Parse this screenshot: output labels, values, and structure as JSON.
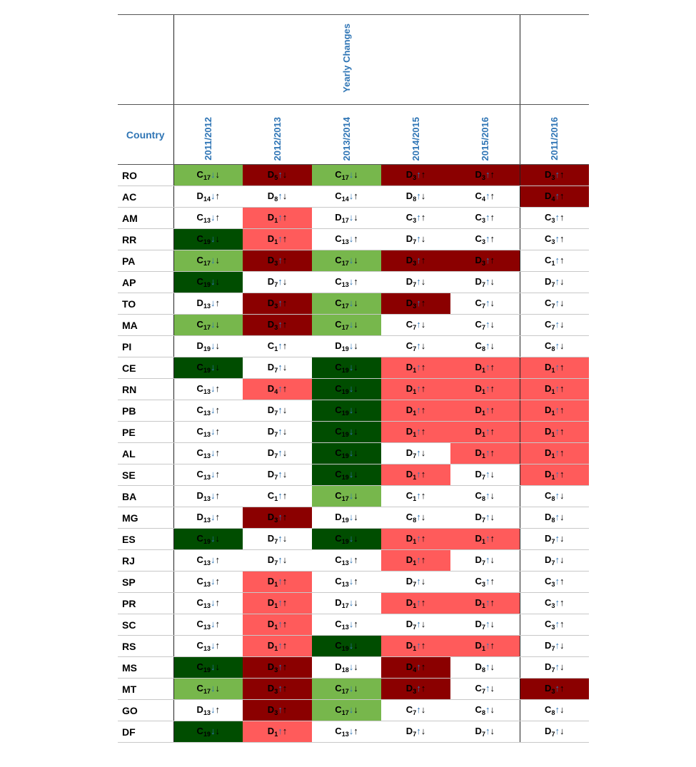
{
  "header": {
    "country_label": "Country",
    "group_label": "Yearly Changes",
    "periods": [
      "2011/2012",
      "2012/2013",
      "2013/2014",
      "2014/2015",
      "2015/2016"
    ],
    "overall_period": "2011/2016"
  },
  "colors": {
    "lightgreen": "#77b74c",
    "darkgreen": "#004d00",
    "lightred": "#ff5b5b",
    "darkred": "#8b0000",
    "header_blue": "#2f75b5"
  },
  "rows": [
    {
      "country": "RO",
      "cells": [
        {
          "l": "C",
          "n": "17",
          "a": "↓↓",
          "bg": "lightgreen"
        },
        {
          "l": "D",
          "n": "5",
          "a": "↑↓",
          "bg": "darkred"
        },
        {
          "l": "C",
          "n": "17",
          "a": "↓↓",
          "bg": "lightgreen"
        },
        {
          "l": "D",
          "n": "3",
          "a": "↑↑",
          "bg": "darkred"
        },
        {
          "l": "D",
          "n": "3",
          "a": "↑↑",
          "bg": "darkred"
        },
        {
          "l": "D",
          "n": "3",
          "a": "↑↑",
          "bg": "darkred"
        }
      ]
    },
    {
      "country": "AC",
      "cells": [
        {
          "l": "D",
          "n": "14",
          "a": "↓↑",
          "bg": ""
        },
        {
          "l": "D",
          "n": "8",
          "a": "↑↓",
          "bg": ""
        },
        {
          "l": "C",
          "n": "14",
          "a": "↓↑",
          "bg": ""
        },
        {
          "l": "D",
          "n": "8",
          "a": "↑↓",
          "bg": ""
        },
        {
          "l": "C",
          "n": "4",
          "a": "↑↑",
          "bg": ""
        },
        {
          "l": "D",
          "n": "4",
          "a": "↑↑",
          "bg": "darkred"
        }
      ]
    },
    {
      "country": "AM",
      "cells": [
        {
          "l": "C",
          "n": "13",
          "a": "↓↑",
          "bg": ""
        },
        {
          "l": "D",
          "n": "1",
          "a": "↑↑",
          "bg": "lightred"
        },
        {
          "l": "D",
          "n": "17",
          "a": "↓↓",
          "bg": ""
        },
        {
          "l": "C",
          "n": "3",
          "a": "↑↑",
          "bg": ""
        },
        {
          "l": "C",
          "n": "3",
          "a": "↑↑",
          "bg": ""
        },
        {
          "l": "C",
          "n": "3",
          "a": "↑↑",
          "bg": ""
        }
      ]
    },
    {
      "country": "RR",
      "cells": [
        {
          "l": "C",
          "n": "19",
          "a": "↓↓",
          "bg": "darkgreen"
        },
        {
          "l": "D",
          "n": "1",
          "a": "↑↑",
          "bg": "lightred"
        },
        {
          "l": "C",
          "n": "13",
          "a": "↓↑",
          "bg": ""
        },
        {
          "l": "D",
          "n": "7",
          "a": "↑↓",
          "bg": ""
        },
        {
          "l": "C",
          "n": "3",
          "a": "↑↑",
          "bg": ""
        },
        {
          "l": "C",
          "n": "3",
          "a": "↑↑",
          "bg": ""
        }
      ]
    },
    {
      "country": "PA",
      "cells": [
        {
          "l": "C",
          "n": "17",
          "a": "↓↓",
          "bg": "lightgreen"
        },
        {
          "l": "D",
          "n": "3",
          "a": "↑↑",
          "bg": "darkred"
        },
        {
          "l": "C",
          "n": "17",
          "a": "↓↓",
          "bg": "lightgreen"
        },
        {
          "l": "D",
          "n": "3",
          "a": "↑↑",
          "bg": "darkred"
        },
        {
          "l": "D",
          "n": "3",
          "a": "↑↑",
          "bg": "darkred"
        },
        {
          "l": "C",
          "n": "1",
          "a": "↑↑",
          "bg": ""
        }
      ]
    },
    {
      "country": "AP",
      "cells": [
        {
          "l": "C",
          "n": "19",
          "a": "↓↓",
          "bg": "darkgreen"
        },
        {
          "l": "D",
          "n": "7",
          "a": "↑↓",
          "bg": ""
        },
        {
          "l": "C",
          "n": "13",
          "a": "↓↑",
          "bg": ""
        },
        {
          "l": "D",
          "n": "7",
          "a": "↑↓",
          "bg": ""
        },
        {
          "l": "D",
          "n": "7",
          "a": "↑↓",
          "bg": ""
        },
        {
          "l": "D",
          "n": "7",
          "a": "↑↓",
          "bg": ""
        }
      ]
    },
    {
      "country": "TO",
      "cells": [
        {
          "l": "D",
          "n": "13",
          "a": "↓↑",
          "bg": ""
        },
        {
          "l": "D",
          "n": "3",
          "a": "↑↑",
          "bg": "darkred"
        },
        {
          "l": "C",
          "n": "17",
          "a": "↓↓",
          "bg": "lightgreen"
        },
        {
          "l": "D",
          "n": "3",
          "a": "↑↑",
          "bg": "darkred"
        },
        {
          "l": "C",
          "n": "7",
          "a": "↑↓",
          "bg": ""
        },
        {
          "l": "C",
          "n": "7",
          "a": "↑↓",
          "bg": ""
        }
      ]
    },
    {
      "country": "MA",
      "cells": [
        {
          "l": "C",
          "n": "17",
          "a": "↓↓",
          "bg": "lightgreen"
        },
        {
          "l": "D",
          "n": "3",
          "a": "↑↑",
          "bg": "darkred"
        },
        {
          "l": "C",
          "n": "17",
          "a": "↓↓",
          "bg": "lightgreen"
        },
        {
          "l": "C",
          "n": "7",
          "a": "↑↓",
          "bg": ""
        },
        {
          "l": "C",
          "n": "7",
          "a": "↑↓",
          "bg": ""
        },
        {
          "l": "C",
          "n": "7",
          "a": "↑↓",
          "bg": ""
        }
      ]
    },
    {
      "country": "PI",
      "cells": [
        {
          "l": "D",
          "n": "19",
          "a": "↓↓",
          "bg": ""
        },
        {
          "l": "C",
          "n": "1",
          "a": "↑↑",
          "bg": ""
        },
        {
          "l": "D",
          "n": "19",
          "a": "↓↓",
          "bg": ""
        },
        {
          "l": "C",
          "n": "7",
          "a": "↑↓",
          "bg": ""
        },
        {
          "l": "C",
          "n": "8",
          "a": "↑↓",
          "bg": ""
        },
        {
          "l": "C",
          "n": "8",
          "a": "↑↓",
          "bg": ""
        }
      ]
    },
    {
      "country": "CE",
      "cells": [
        {
          "l": "C",
          "n": "19",
          "a": "↓↓",
          "bg": "darkgreen"
        },
        {
          "l": "D",
          "n": "7",
          "a": "↑↓",
          "bg": ""
        },
        {
          "l": "C",
          "n": "19",
          "a": "↓↓",
          "bg": "darkgreen"
        },
        {
          "l": "D",
          "n": "1",
          "a": "↑↑",
          "bg": "lightred"
        },
        {
          "l": "D",
          "n": "1",
          "a": "↑↑",
          "bg": "lightred"
        },
        {
          "l": "D",
          "n": "1",
          "a": "↑↑",
          "bg": "lightred"
        }
      ]
    },
    {
      "country": "RN",
      "cells": [
        {
          "l": "C",
          "n": "13",
          "a": "↓↑",
          "bg": ""
        },
        {
          "l": "D",
          "n": "4",
          "a": "↑↑",
          "bg": "lightred"
        },
        {
          "l": "C",
          "n": "19",
          "a": "↓↓",
          "bg": "darkgreen"
        },
        {
          "l": "D",
          "n": "1",
          "a": "↑↑",
          "bg": "lightred"
        },
        {
          "l": "D",
          "n": "1",
          "a": "↑↑",
          "bg": "lightred"
        },
        {
          "l": "D",
          "n": "1",
          "a": "↑↑",
          "bg": "lightred"
        }
      ]
    },
    {
      "country": "PB",
      "cells": [
        {
          "l": "C",
          "n": "13",
          "a": "↓↑",
          "bg": ""
        },
        {
          "l": "D",
          "n": "7",
          "a": "↑↓",
          "bg": ""
        },
        {
          "l": "C",
          "n": "19",
          "a": "↓↓",
          "bg": "darkgreen"
        },
        {
          "l": "D",
          "n": "1",
          "a": "↑↑",
          "bg": "lightred"
        },
        {
          "l": "D",
          "n": "1",
          "a": "↑↑",
          "bg": "lightred"
        },
        {
          "l": "D",
          "n": "1",
          "a": "↑↑",
          "bg": "lightred"
        }
      ]
    },
    {
      "country": "PE",
      "cells": [
        {
          "l": "C",
          "n": "13",
          "a": "↓↑",
          "bg": ""
        },
        {
          "l": "D",
          "n": "7",
          "a": "↑↓",
          "bg": ""
        },
        {
          "l": "C",
          "n": "19",
          "a": "↓↓",
          "bg": "darkgreen"
        },
        {
          "l": "D",
          "n": "1",
          "a": "↑↑",
          "bg": "lightred"
        },
        {
          "l": "D",
          "n": "1",
          "a": "↑↑",
          "bg": "lightred"
        },
        {
          "l": "D",
          "n": "1",
          "a": "↑↑",
          "bg": "lightred"
        }
      ]
    },
    {
      "country": "AL",
      "cells": [
        {
          "l": "C",
          "n": "13",
          "a": "↓↑",
          "bg": ""
        },
        {
          "l": "D",
          "n": "7",
          "a": "↑↓",
          "bg": ""
        },
        {
          "l": "C",
          "n": "19",
          "a": "↓↓",
          "bg": "darkgreen"
        },
        {
          "l": "D",
          "n": "7",
          "a": "↑↓",
          "bg": ""
        },
        {
          "l": "D",
          "n": "1",
          "a": "↑↑",
          "bg": "lightred"
        },
        {
          "l": "D",
          "n": "1",
          "a": "↑↑",
          "bg": "lightred"
        }
      ]
    },
    {
      "country": "SE",
      "cells": [
        {
          "l": "C",
          "n": "13",
          "a": "↓↑",
          "bg": ""
        },
        {
          "l": "D",
          "n": "7",
          "a": "↑↓",
          "bg": ""
        },
        {
          "l": "C",
          "n": "19",
          "a": "↓↓",
          "bg": "darkgreen"
        },
        {
          "l": "D",
          "n": "1",
          "a": "↑↑",
          "bg": "lightred"
        },
        {
          "l": "D",
          "n": "7",
          "a": "↑↓",
          "bg": ""
        },
        {
          "l": "D",
          "n": "1",
          "a": "↑↑",
          "bg": "lightred"
        }
      ]
    },
    {
      "country": "BA",
      "cells": [
        {
          "l": "D",
          "n": "13",
          "a": "↓↑",
          "bg": ""
        },
        {
          "l": "C",
          "n": "1",
          "a": "↑↑",
          "bg": ""
        },
        {
          "l": "C",
          "n": "17",
          "a": "↓↓",
          "bg": "lightgreen"
        },
        {
          "l": "C",
          "n": "1",
          "a": "↑↑",
          "bg": ""
        },
        {
          "l": "C",
          "n": "8",
          "a": "↑↓",
          "bg": ""
        },
        {
          "l": "C",
          "n": "8",
          "a": "↑↓",
          "bg": ""
        }
      ]
    },
    {
      "country": "MG",
      "cells": [
        {
          "l": "D",
          "n": "13",
          "a": "↓↑",
          "bg": ""
        },
        {
          "l": "D",
          "n": "3",
          "a": "↑↑",
          "bg": "darkred"
        },
        {
          "l": "D",
          "n": "19",
          "a": "↓↓",
          "bg": ""
        },
        {
          "l": "C",
          "n": "8",
          "a": "↑↓",
          "bg": ""
        },
        {
          "l": "D",
          "n": "7",
          "a": "↑↓",
          "bg": ""
        },
        {
          "l": "D",
          "n": "8",
          "a": "↑↓",
          "bg": ""
        }
      ]
    },
    {
      "country": "ES",
      "cells": [
        {
          "l": "C",
          "n": "19",
          "a": "↓↓",
          "bg": "darkgreen"
        },
        {
          "l": "D",
          "n": "7",
          "a": "↑↓",
          "bg": ""
        },
        {
          "l": "C",
          "n": "19",
          "a": "↓↓",
          "bg": "darkgreen"
        },
        {
          "l": "D",
          "n": "1",
          "a": "↑↑",
          "bg": "lightred"
        },
        {
          "l": "D",
          "n": "1",
          "a": "↑↑",
          "bg": "lightred"
        },
        {
          "l": "D",
          "n": "7",
          "a": "↑↓",
          "bg": ""
        }
      ]
    },
    {
      "country": "RJ",
      "cells": [
        {
          "l": "C",
          "n": "13",
          "a": "↓↑",
          "bg": ""
        },
        {
          "l": "D",
          "n": "7",
          "a": "↑↓",
          "bg": ""
        },
        {
          "l": "C",
          "n": "13",
          "a": "↓↑",
          "bg": ""
        },
        {
          "l": "D",
          "n": "1",
          "a": "↑↑",
          "bg": "lightred"
        },
        {
          "l": "D",
          "n": "7",
          "a": "↑↓",
          "bg": ""
        },
        {
          "l": "D",
          "n": "7",
          "a": "↑↓",
          "bg": ""
        }
      ]
    },
    {
      "country": "SP",
      "cells": [
        {
          "l": "C",
          "n": "13",
          "a": "↓↑",
          "bg": ""
        },
        {
          "l": "D",
          "n": "1",
          "a": "↑↑",
          "bg": "lightred"
        },
        {
          "l": "C",
          "n": "13",
          "a": "↓↑",
          "bg": ""
        },
        {
          "l": "D",
          "n": "7",
          "a": "↑↓",
          "bg": ""
        },
        {
          "l": "C",
          "n": "3",
          "a": "↑↑",
          "bg": ""
        },
        {
          "l": "C",
          "n": "3",
          "a": "↑↑",
          "bg": ""
        }
      ]
    },
    {
      "country": "PR",
      "cells": [
        {
          "l": "C",
          "n": "13",
          "a": "↓↑",
          "bg": ""
        },
        {
          "l": "D",
          "n": "1",
          "a": "↑↑",
          "bg": "lightred"
        },
        {
          "l": "D",
          "n": "17",
          "a": "↓↓",
          "bg": ""
        },
        {
          "l": "D",
          "n": "1",
          "a": "↑↑",
          "bg": "lightred"
        },
        {
          "l": "D",
          "n": "1",
          "a": "↑↑",
          "bg": "lightred"
        },
        {
          "l": "C",
          "n": "3",
          "a": "↑↑",
          "bg": ""
        }
      ]
    },
    {
      "country": "SC",
      "cells": [
        {
          "l": "C",
          "n": "13",
          "a": "↓↑",
          "bg": ""
        },
        {
          "l": "D",
          "n": "1",
          "a": "↑↑",
          "bg": "lightred"
        },
        {
          "l": "C",
          "n": "13",
          "a": "↓↑",
          "bg": ""
        },
        {
          "l": "D",
          "n": "7",
          "a": "↑↓",
          "bg": ""
        },
        {
          "l": "D",
          "n": "7",
          "a": "↑↓",
          "bg": ""
        },
        {
          "l": "C",
          "n": "3",
          "a": "↑↑",
          "bg": ""
        }
      ]
    },
    {
      "country": "RS",
      "cells": [
        {
          "l": "C",
          "n": "13",
          "a": "↓↑",
          "bg": ""
        },
        {
          "l": "D",
          "n": "1",
          "a": "↑↑",
          "bg": "lightred"
        },
        {
          "l": "C",
          "n": "19",
          "a": "↓↓",
          "bg": "darkgreen"
        },
        {
          "l": "D",
          "n": "1",
          "a": "↑↑",
          "bg": "lightred"
        },
        {
          "l": "D",
          "n": "1",
          "a": "↑↑",
          "bg": "lightred"
        },
        {
          "l": "D",
          "n": "7",
          "a": "↑↓",
          "bg": ""
        }
      ]
    },
    {
      "country": "MS",
      "cells": [
        {
          "l": "C",
          "n": "19",
          "a": "↓↓",
          "bg": "darkgreen"
        },
        {
          "l": "D",
          "n": "3",
          "a": "↑↑",
          "bg": "darkred"
        },
        {
          "l": "D",
          "n": "18",
          "a": "↓↓",
          "bg": ""
        },
        {
          "l": "D",
          "n": "4",
          "a": "↑↑",
          "bg": "darkred"
        },
        {
          "l": "D",
          "n": "8",
          "a": "↑↓",
          "bg": ""
        },
        {
          "l": "D",
          "n": "7",
          "a": "↑↓",
          "bg": ""
        }
      ]
    },
    {
      "country": "MT",
      "cells": [
        {
          "l": "C",
          "n": "17",
          "a": "↓↓",
          "bg": "lightgreen"
        },
        {
          "l": "D",
          "n": "3",
          "a": "↑↑",
          "bg": "darkred"
        },
        {
          "l": "C",
          "n": "17",
          "a": "↓↓",
          "bg": "lightgreen"
        },
        {
          "l": "D",
          "n": "3",
          "a": "↑↑",
          "bg": "darkred"
        },
        {
          "l": "C",
          "n": "7",
          "a": "↑↓",
          "bg": ""
        },
        {
          "l": "D",
          "n": "3",
          "a": "↑↑",
          "bg": "darkred"
        }
      ]
    },
    {
      "country": "GO",
      "cells": [
        {
          "l": "D",
          "n": "13",
          "a": "↓↑",
          "bg": ""
        },
        {
          "l": "D",
          "n": "3",
          "a": "↑↑",
          "bg": "darkred"
        },
        {
          "l": "C",
          "n": "17",
          "a": "↓↓",
          "bg": "lightgreen"
        },
        {
          "l": "C",
          "n": "7",
          "a": "↑↓",
          "bg": ""
        },
        {
          "l": "C",
          "n": "8",
          "a": "↑↓",
          "bg": ""
        },
        {
          "l": "C",
          "n": "8",
          "a": "↑↓",
          "bg": ""
        }
      ]
    },
    {
      "country": "DF",
      "cells": [
        {
          "l": "C",
          "n": "19",
          "a": "↓↓",
          "bg": "darkgreen"
        },
        {
          "l": "D",
          "n": "1",
          "a": "↑↑",
          "bg": "lightred"
        },
        {
          "l": "C",
          "n": "13",
          "a": "↓↑",
          "bg": ""
        },
        {
          "l": "D",
          "n": "7",
          "a": "↑↓",
          "bg": ""
        },
        {
          "l": "D",
          "n": "7",
          "a": "↑↓",
          "bg": ""
        },
        {
          "l": "D",
          "n": "7",
          "a": "↑↓",
          "bg": ""
        }
      ]
    }
  ]
}
